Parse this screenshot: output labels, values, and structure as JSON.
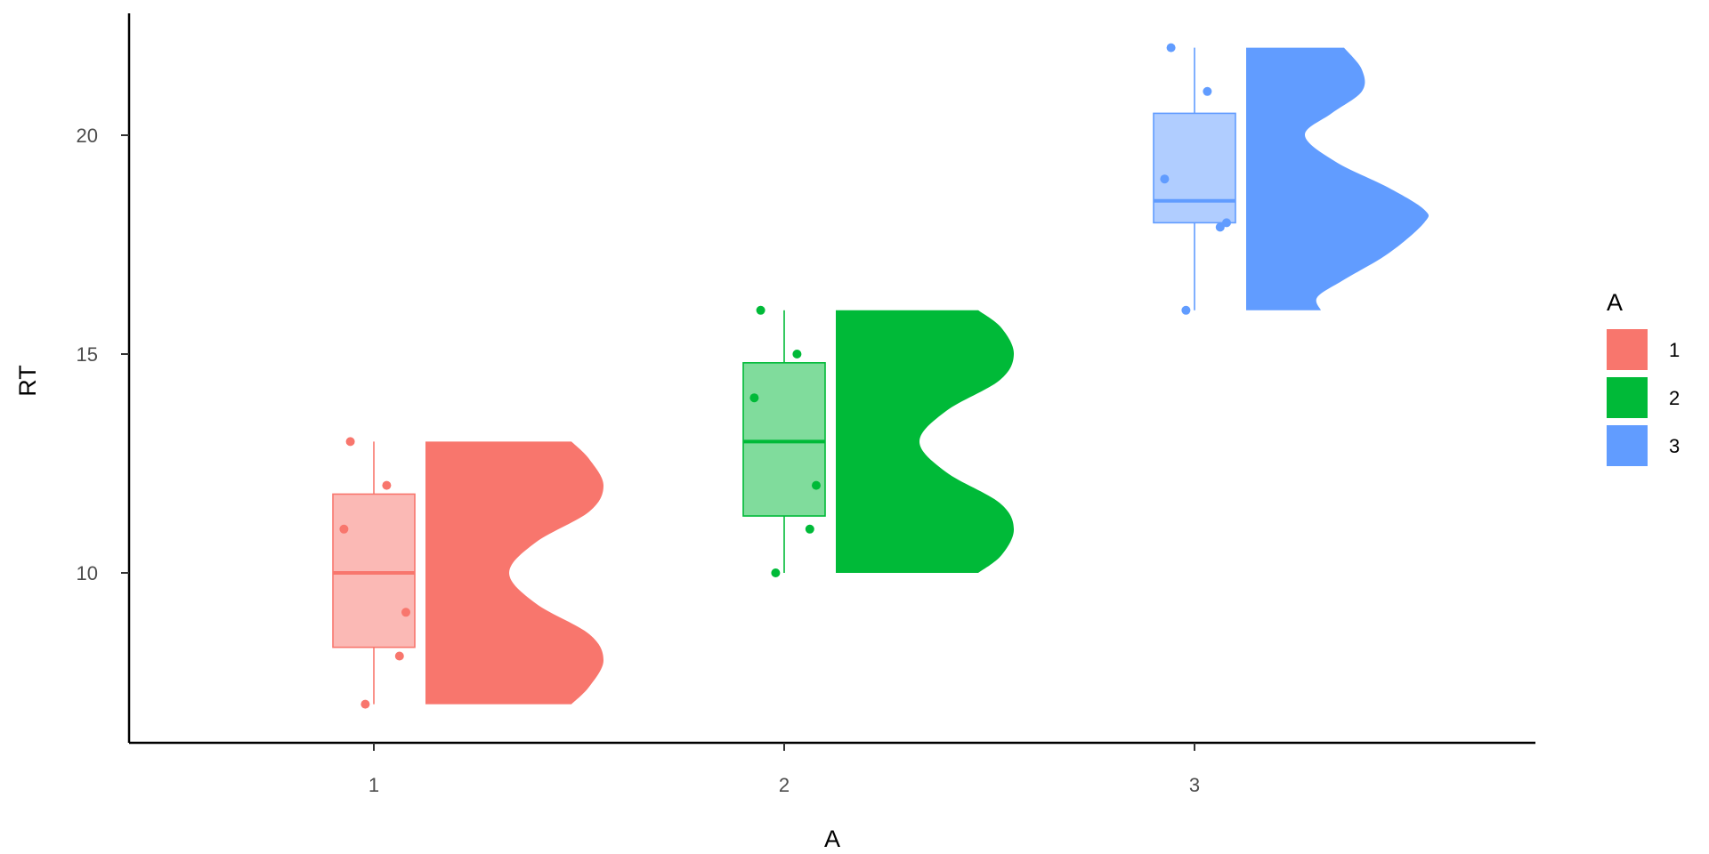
{
  "chart_data": {
    "type": "raincloud",
    "xlabel": "A",
    "ylabel": "RT",
    "categories": [
      "1",
      "2",
      "3"
    ],
    "y_ticks": [
      10,
      15,
      20
    ],
    "y_tick_labels": [
      "10",
      "15",
      "20"
    ],
    "ylim": [
      6.2,
      22.8
    ],
    "grid": false,
    "legend": {
      "title": "A",
      "position": "right",
      "entries": [
        "1",
        "2",
        "3"
      ]
    },
    "series": [
      {
        "name": "1",
        "color": "#F8766D",
        "box_fill": "#FBB9B5",
        "points": [
          13.0,
          12.0,
          11.0,
          9.1,
          8.1,
          7.0
        ],
        "box": {
          "min": 7.0,
          "q1": 8.3,
          "median": 10.0,
          "q3": 11.8,
          "max": 13.0
        },
        "density_range": [
          7.0,
          13.0
        ],
        "density": [
          [
            7.0,
            0.82
          ],
          [
            7.4,
            0.92
          ],
          [
            8.0,
            1.0
          ],
          [
            8.6,
            0.92
          ],
          [
            9.3,
            0.62
          ],
          [
            10.0,
            0.47
          ],
          [
            10.7,
            0.62
          ],
          [
            11.4,
            0.92
          ],
          [
            12.0,
            1.0
          ],
          [
            12.6,
            0.92
          ],
          [
            13.0,
            0.82
          ]
        ]
      },
      {
        "name": "2",
        "color": "#00BA38",
        "box_fill": "#80DC9C",
        "points": [
          16.0,
          15.0,
          14.0,
          12.0,
          11.0,
          10.0
        ],
        "box": {
          "min": 10.0,
          "q1": 11.3,
          "median": 13.0,
          "q3": 14.8,
          "max": 16.0
        },
        "density_range": [
          10.0,
          16.0
        ],
        "density": [
          [
            10.0,
            0.8
          ],
          [
            10.4,
            0.93
          ],
          [
            11.0,
            1.0
          ],
          [
            11.6,
            0.92
          ],
          [
            12.3,
            0.62
          ],
          [
            13.0,
            0.47
          ],
          [
            13.7,
            0.62
          ],
          [
            14.4,
            0.92
          ],
          [
            15.0,
            1.0
          ],
          [
            15.6,
            0.93
          ],
          [
            16.0,
            0.8
          ]
        ]
      },
      {
        "name": "3",
        "color": "#619CFF",
        "box_fill": "#B0CDFF",
        "points": [
          22.0,
          21.0,
          19.0,
          18.0,
          17.9,
          16.0
        ],
        "box": {
          "min": 16.0,
          "q1": 18.0,
          "median": 18.5,
          "q3": 20.5,
          "max": 22.0
        },
        "density_range": [
          16.0,
          22.0
        ],
        "density": [
          [
            16.0,
            0.42
          ],
          [
            16.3,
            0.4
          ],
          [
            16.7,
            0.55
          ],
          [
            17.3,
            0.8
          ],
          [
            18.0,
            1.0
          ],
          [
            18.3,
            1.0
          ],
          [
            18.8,
            0.8
          ],
          [
            19.4,
            0.5
          ],
          [
            20.0,
            0.33
          ],
          [
            20.5,
            0.48
          ],
          [
            21.0,
            0.65
          ],
          [
            21.5,
            0.65
          ],
          [
            22.0,
            0.55
          ]
        ]
      }
    ]
  }
}
